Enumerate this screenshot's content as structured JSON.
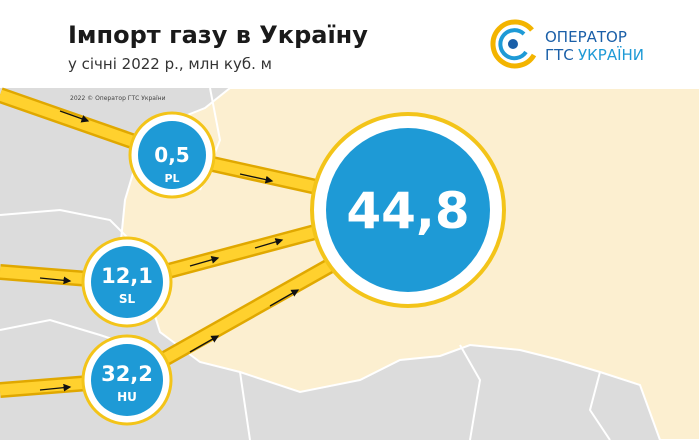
{
  "header": {
    "title": "Імпорт газу в Україну",
    "subtitle": "у січні 2022 р., млн куб. м"
  },
  "logo": {
    "line1": "ОПЕРАТОР",
    "line2a": "ГТС",
    "line2b": "УКРАЇНИ"
  },
  "copyright": "2022 © Оператор ГТС України",
  "total": "44,8",
  "sources": [
    {
      "value": "0,5",
      "label": "PL"
    },
    {
      "value": "12,1",
      "label": "SL"
    },
    {
      "value": "32,2",
      "label": "HU"
    }
  ]
}
